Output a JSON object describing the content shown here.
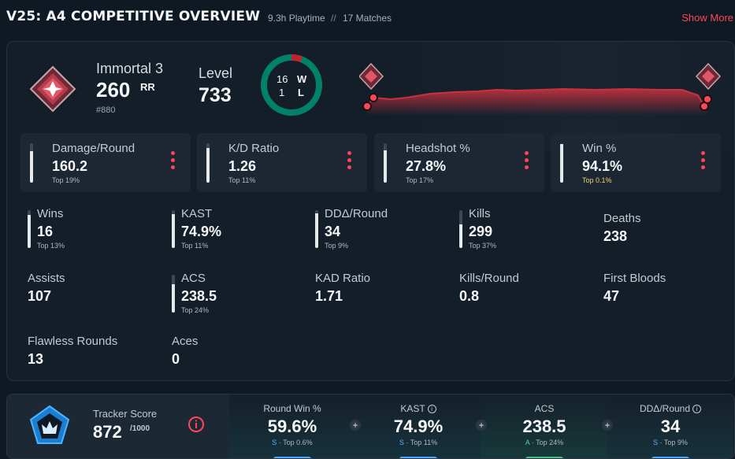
{
  "header": {
    "title": "V25: A4 COMPETITIVE OVERVIEW",
    "playtime": "9.3h Playtime",
    "separator": "//",
    "matches": "17 Matches",
    "show_more": "Show More"
  },
  "rank": {
    "name": "Immortal 3",
    "rr": "260",
    "rr_label": "RR",
    "position": "#880",
    "icon": "immortal-rank-icon"
  },
  "level": {
    "label": "Level",
    "value": "733"
  },
  "win_loss": {
    "wins": "16",
    "losses": "1",
    "w_label": "W",
    "l_label": "L",
    "win_color": "#00826a",
    "loss_color": "#c0252f"
  },
  "rr_graph": {
    "color": "#c8313f",
    "start_icon": "immortal-rank-icon",
    "end_icon": "immortal-rank-icon"
  },
  "highlight_stats": [
    {
      "label": "Damage/Round",
      "value": "160.2",
      "rank": "Top 19%",
      "fill": 0.81,
      "gold": false
    },
    {
      "label": "K/D Ratio",
      "value": "1.26",
      "rank": "Top 11%",
      "fill": 0.89,
      "gold": false
    },
    {
      "label": "Headshot %",
      "value": "27.8%",
      "rank": "Top 17%",
      "fill": 0.83,
      "gold": false
    },
    {
      "label": "Win %",
      "value": "94.1%",
      "rank": "Top 0.1%",
      "fill": 0.99,
      "gold": true
    }
  ],
  "stats": [
    {
      "label": "Wins",
      "value": "16",
      "rank": "Top 13%",
      "fill": 0.87
    },
    {
      "label": "KAST",
      "value": "74.9%",
      "rank": "Top 11%",
      "fill": 0.89
    },
    {
      "label": "DDΔ/Round",
      "value": "34",
      "rank": "Top 9%",
      "fill": 0.91
    },
    {
      "label": "Kills",
      "value": "299",
      "rank": "Top 37%",
      "fill": 0.63
    },
    {
      "label": "Deaths",
      "value": "238",
      "rank": "",
      "fill": 0
    },
    {
      "label": "Assists",
      "value": "107",
      "rank": "",
      "fill": 0
    },
    {
      "label": "ACS",
      "value": "238.5",
      "rank": "Top 24%",
      "fill": 0.76
    },
    {
      "label": "KAD Ratio",
      "value": "1.71",
      "rank": "",
      "fill": 0
    },
    {
      "label": "Kills/Round",
      "value": "0.8",
      "rank": "",
      "fill": 0
    },
    {
      "label": "First Bloods",
      "value": "47",
      "rank": "",
      "fill": 0
    },
    {
      "label": "Flawless Rounds",
      "value": "13",
      "rank": "",
      "fill": 0
    },
    {
      "label": "Aces",
      "value": "0",
      "rank": "",
      "fill": 0
    }
  ],
  "tracker": {
    "label": "Tracker Score",
    "value": "872",
    "max": "/1000",
    "info_icon": "info-icon",
    "columns": [
      {
        "label": "Round Win %",
        "value": "59.6%",
        "grade": "S",
        "rank": "· Top 0.6%",
        "info": false,
        "tone": "blue"
      },
      {
        "label": "KAST",
        "value": "74.9%",
        "grade": "S",
        "rank": "· Top 11%",
        "info": true,
        "tone": "blue"
      },
      {
        "label": "ACS",
        "value": "238.5",
        "grade": "A",
        "rank": "· Top 24%",
        "info": false,
        "tone": "green"
      },
      {
        "label": "DDΔ/Round",
        "value": "34",
        "grade": "S",
        "rank": "· Top 9%",
        "info": true,
        "tone": "blue"
      }
    ],
    "plus": "+"
  }
}
